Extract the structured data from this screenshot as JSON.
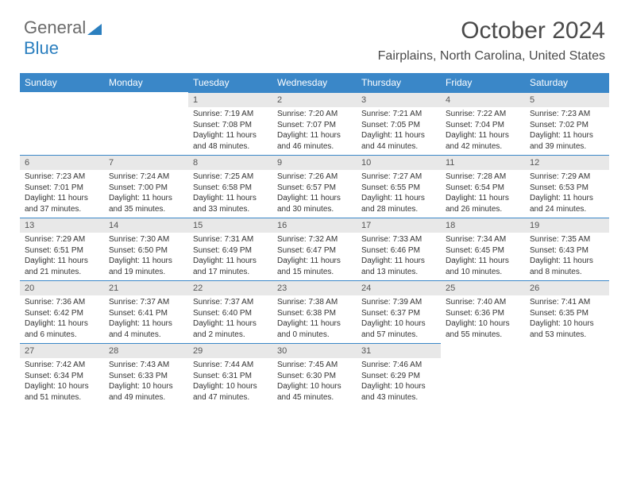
{
  "logo": {
    "text1": "General",
    "text2": "Blue"
  },
  "title": "October 2024",
  "location": "Fairplains, North Carolina, United States",
  "colors": {
    "header_bg": "#3a87c8",
    "header_text": "#ffffff",
    "daynum_bg": "#e8e8e8",
    "daynum_border": "#3a87c8",
    "body_text": "#333333",
    "logo_gray": "#6a6a6a",
    "logo_blue": "#2b7fbf"
  },
  "dayNames": [
    "Sunday",
    "Monday",
    "Tuesday",
    "Wednesday",
    "Thursday",
    "Friday",
    "Saturday"
  ],
  "weeks": [
    [
      null,
      null,
      {
        "n": "1",
        "sr": "Sunrise: 7:19 AM",
        "ss": "Sunset: 7:08 PM",
        "dl": "Daylight: 11 hours and 48 minutes."
      },
      {
        "n": "2",
        "sr": "Sunrise: 7:20 AM",
        "ss": "Sunset: 7:07 PM",
        "dl": "Daylight: 11 hours and 46 minutes."
      },
      {
        "n": "3",
        "sr": "Sunrise: 7:21 AM",
        "ss": "Sunset: 7:05 PM",
        "dl": "Daylight: 11 hours and 44 minutes."
      },
      {
        "n": "4",
        "sr": "Sunrise: 7:22 AM",
        "ss": "Sunset: 7:04 PM",
        "dl": "Daylight: 11 hours and 42 minutes."
      },
      {
        "n": "5",
        "sr": "Sunrise: 7:23 AM",
        "ss": "Sunset: 7:02 PM",
        "dl": "Daylight: 11 hours and 39 minutes."
      }
    ],
    [
      {
        "n": "6",
        "sr": "Sunrise: 7:23 AM",
        "ss": "Sunset: 7:01 PM",
        "dl": "Daylight: 11 hours and 37 minutes."
      },
      {
        "n": "7",
        "sr": "Sunrise: 7:24 AM",
        "ss": "Sunset: 7:00 PM",
        "dl": "Daylight: 11 hours and 35 minutes."
      },
      {
        "n": "8",
        "sr": "Sunrise: 7:25 AM",
        "ss": "Sunset: 6:58 PM",
        "dl": "Daylight: 11 hours and 33 minutes."
      },
      {
        "n": "9",
        "sr": "Sunrise: 7:26 AM",
        "ss": "Sunset: 6:57 PM",
        "dl": "Daylight: 11 hours and 30 minutes."
      },
      {
        "n": "10",
        "sr": "Sunrise: 7:27 AM",
        "ss": "Sunset: 6:55 PM",
        "dl": "Daylight: 11 hours and 28 minutes."
      },
      {
        "n": "11",
        "sr": "Sunrise: 7:28 AM",
        "ss": "Sunset: 6:54 PM",
        "dl": "Daylight: 11 hours and 26 minutes."
      },
      {
        "n": "12",
        "sr": "Sunrise: 7:29 AM",
        "ss": "Sunset: 6:53 PM",
        "dl": "Daylight: 11 hours and 24 minutes."
      }
    ],
    [
      {
        "n": "13",
        "sr": "Sunrise: 7:29 AM",
        "ss": "Sunset: 6:51 PM",
        "dl": "Daylight: 11 hours and 21 minutes."
      },
      {
        "n": "14",
        "sr": "Sunrise: 7:30 AM",
        "ss": "Sunset: 6:50 PM",
        "dl": "Daylight: 11 hours and 19 minutes."
      },
      {
        "n": "15",
        "sr": "Sunrise: 7:31 AM",
        "ss": "Sunset: 6:49 PM",
        "dl": "Daylight: 11 hours and 17 minutes."
      },
      {
        "n": "16",
        "sr": "Sunrise: 7:32 AM",
        "ss": "Sunset: 6:47 PM",
        "dl": "Daylight: 11 hours and 15 minutes."
      },
      {
        "n": "17",
        "sr": "Sunrise: 7:33 AM",
        "ss": "Sunset: 6:46 PM",
        "dl": "Daylight: 11 hours and 13 minutes."
      },
      {
        "n": "18",
        "sr": "Sunrise: 7:34 AM",
        "ss": "Sunset: 6:45 PM",
        "dl": "Daylight: 11 hours and 10 minutes."
      },
      {
        "n": "19",
        "sr": "Sunrise: 7:35 AM",
        "ss": "Sunset: 6:43 PM",
        "dl": "Daylight: 11 hours and 8 minutes."
      }
    ],
    [
      {
        "n": "20",
        "sr": "Sunrise: 7:36 AM",
        "ss": "Sunset: 6:42 PM",
        "dl": "Daylight: 11 hours and 6 minutes."
      },
      {
        "n": "21",
        "sr": "Sunrise: 7:37 AM",
        "ss": "Sunset: 6:41 PM",
        "dl": "Daylight: 11 hours and 4 minutes."
      },
      {
        "n": "22",
        "sr": "Sunrise: 7:37 AM",
        "ss": "Sunset: 6:40 PM",
        "dl": "Daylight: 11 hours and 2 minutes."
      },
      {
        "n": "23",
        "sr": "Sunrise: 7:38 AM",
        "ss": "Sunset: 6:38 PM",
        "dl": "Daylight: 11 hours and 0 minutes."
      },
      {
        "n": "24",
        "sr": "Sunrise: 7:39 AM",
        "ss": "Sunset: 6:37 PM",
        "dl": "Daylight: 10 hours and 57 minutes."
      },
      {
        "n": "25",
        "sr": "Sunrise: 7:40 AM",
        "ss": "Sunset: 6:36 PM",
        "dl": "Daylight: 10 hours and 55 minutes."
      },
      {
        "n": "26",
        "sr": "Sunrise: 7:41 AM",
        "ss": "Sunset: 6:35 PM",
        "dl": "Daylight: 10 hours and 53 minutes."
      }
    ],
    [
      {
        "n": "27",
        "sr": "Sunrise: 7:42 AM",
        "ss": "Sunset: 6:34 PM",
        "dl": "Daylight: 10 hours and 51 minutes."
      },
      {
        "n": "28",
        "sr": "Sunrise: 7:43 AM",
        "ss": "Sunset: 6:33 PM",
        "dl": "Daylight: 10 hours and 49 minutes."
      },
      {
        "n": "29",
        "sr": "Sunrise: 7:44 AM",
        "ss": "Sunset: 6:31 PM",
        "dl": "Daylight: 10 hours and 47 minutes."
      },
      {
        "n": "30",
        "sr": "Sunrise: 7:45 AM",
        "ss": "Sunset: 6:30 PM",
        "dl": "Daylight: 10 hours and 45 minutes."
      },
      {
        "n": "31",
        "sr": "Sunrise: 7:46 AM",
        "ss": "Sunset: 6:29 PM",
        "dl": "Daylight: 10 hours and 43 minutes."
      },
      null,
      null
    ]
  ]
}
